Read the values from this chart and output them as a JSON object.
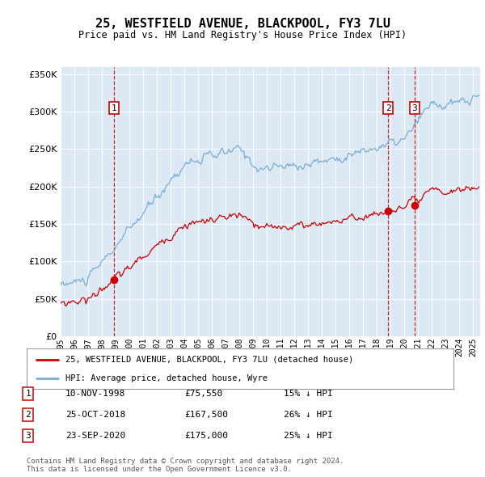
{
  "title": "25, WESTFIELD AVENUE, BLACKPOOL, FY3 7LU",
  "subtitle": "Price paid vs. HM Land Registry's House Price Index (HPI)",
  "ylim": [
    0,
    360000
  ],
  "yticks": [
    0,
    50000,
    100000,
    150000,
    200000,
    250000,
    300000,
    350000
  ],
  "bg_color": "#dce9f5",
  "red_color": "#cc0000",
  "blue_color": "#7aadd4",
  "legend_label_red": "25, WESTFIELD AVENUE, BLACKPOOL, FY3 7LU (detached house)",
  "legend_label_blue": "HPI: Average price, detached house, Wyre",
  "transaction1_date": "10-NOV-1998",
  "transaction1_price": "£75,550",
  "transaction1_hpi": "15% ↓ HPI",
  "transaction2_date": "25-OCT-2018",
  "transaction2_price": "£167,500",
  "transaction2_hpi": "26% ↓ HPI",
  "transaction3_date": "23-SEP-2020",
  "transaction3_price": "£175,000",
  "transaction3_hpi": "25% ↓ HPI",
  "footer": "Contains HM Land Registry data © Crown copyright and database right 2024.\nThis data is licensed under the Open Government Licence v3.0.",
  "t1": 1998.87,
  "t2": 2018.82,
  "t3": 2020.73,
  "p1": 75550,
  "p2": 167500,
  "p3": 175000
}
